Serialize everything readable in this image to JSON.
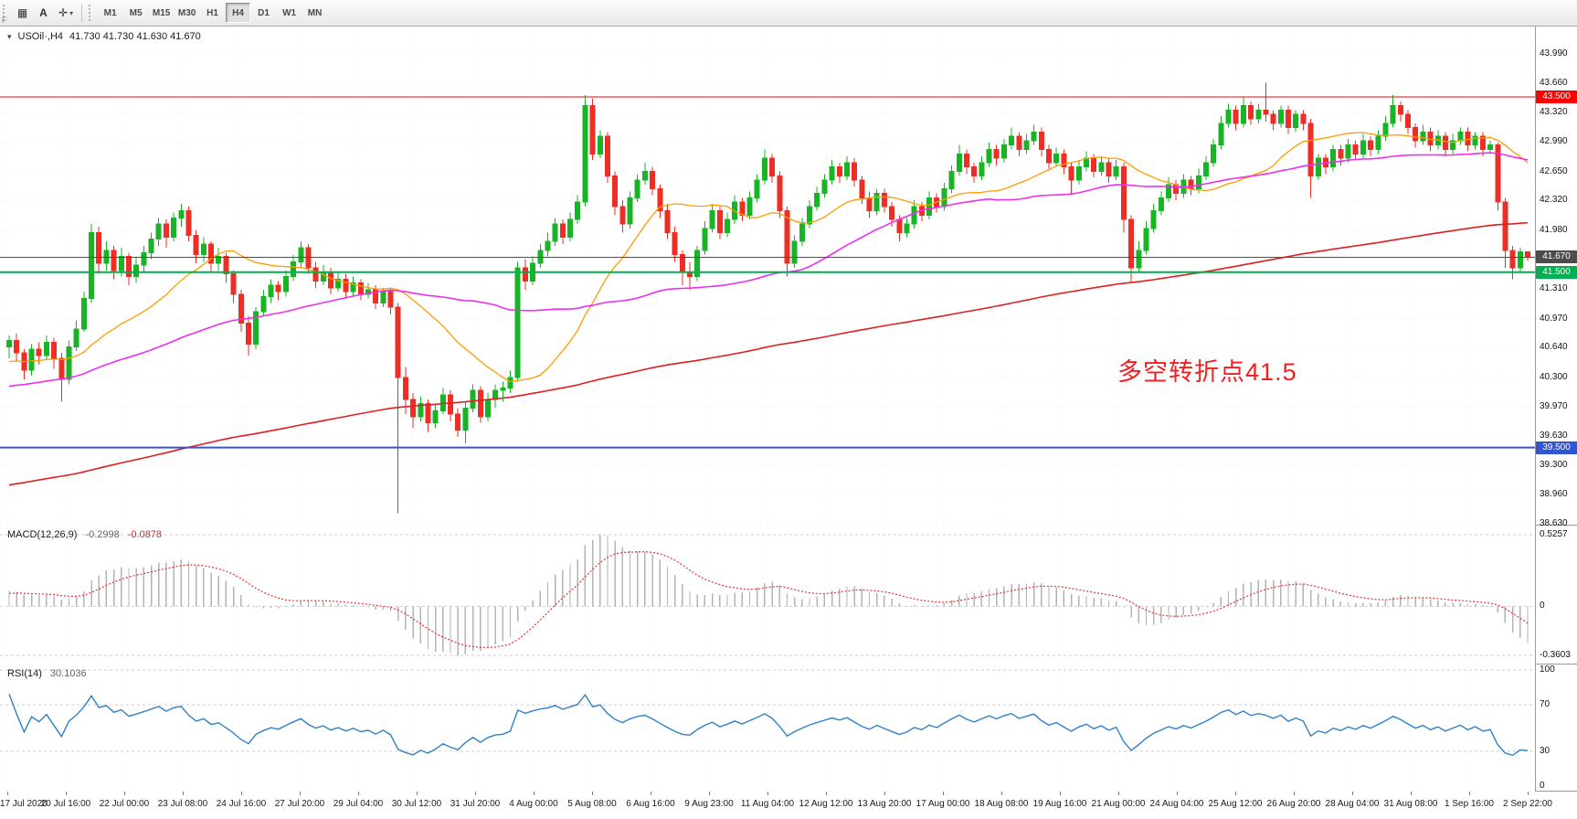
{
  "toolbar": {
    "corner_label": "F",
    "grid_glyph": "▦",
    "text_tool_label": "A",
    "cursor_glyph": "✛",
    "dropdown_glyph": "▾",
    "timeframes": [
      "M1",
      "M5",
      "M15",
      "M30",
      "H1",
      "H4",
      "D1",
      "W1",
      "MN"
    ],
    "active_timeframe": "H4"
  },
  "chart_data": {
    "type": "candlestick",
    "symbol_label": "USOil·,H4",
    "ohlc_text": "41.730 41.730 41.630 41.670",
    "arrow_glyph": "▾",
    "annotation": {
      "text": "多空转折点41.5",
      "color": "#f51d1d",
      "x_frac": 0.728,
      "y_price": 40.42,
      "font_size": 27
    },
    "colors": {
      "up": "#18b426",
      "down": "#ee2e24",
      "grid": "#f0f0f0",
      "macd_hist": "#b3b3b3",
      "macd_signal": "#e03434",
      "rsi_line": "#2f80c8"
    },
    "y_range": [
      38.63,
      43.99
    ],
    "y_axis_ticks": [
      "43.990",
      "43.660",
      "43.320",
      "42.990",
      "42.650",
      "42.320",
      "41.980",
      "41.310",
      "40.970",
      "40.640",
      "40.300",
      "39.970",
      "39.630",
      "39.300",
      "38.960",
      "38.630"
    ],
    "x_labels": [
      "17 Jul 2020",
      "20 Jul 16:00",
      "22 Jul 00:00",
      "23 Jul 08:00",
      "24 Jul 16:00",
      "27 Jul 20:00",
      "29 Jul 04:00",
      "30 Jul 12:00",
      "31 Jul 20:00",
      "4 Aug 00:00",
      "5 Aug 08:00",
      "6 Aug 16:00",
      "9 Aug 23:00",
      "11 Aug 04:00",
      "12 Aug 12:00",
      "13 Aug 20:00",
      "17 Aug 00:00",
      "18 Aug 08:00",
      "19 Aug 16:00",
      "21 Aug 00:00",
      "24 Aug 04:00",
      "25 Aug 12:00",
      "26 Aug 20:00",
      "28 Aug 04:00",
      "31 Aug 08:00",
      "1 Sep 16:00",
      "2 Sep 22:00"
    ],
    "horizontal_lines": [
      {
        "price": 43.5,
        "label": "43.500",
        "color": "#ff0000",
        "width": 1
      },
      {
        "price": 41.67,
        "label": "41.670",
        "color": "#4d4d4d",
        "width": 1
      },
      {
        "price": 41.5,
        "label": "41.500",
        "color": "#00b050",
        "width": 2
      },
      {
        "price": 39.5,
        "label": "39.500",
        "color": "#3355d0",
        "width": 2
      }
    ],
    "moving_averages": [
      {
        "period": 20,
        "color": "#ff9c00",
        "width": 1.3,
        "name": "ma-fast-orange"
      },
      {
        "period": 55,
        "color": "#ee2fee",
        "width": 1.6,
        "name": "ma-mid-magenta"
      },
      {
        "period": 200,
        "color": "#dd2020",
        "width": 1.6,
        "name": "ma-slow-red"
      }
    ],
    "ma_seed": {
      "count": 220,
      "start": 37.2,
      "end": 40.6
    },
    "macd": {
      "label": "MACD(12,26,9)",
      "main_value": "-0.2998",
      "signal_value": "-0.0878",
      "fast": 12,
      "slow": 26,
      "signal": 9,
      "max": 0.5257,
      "min": -0.3603,
      "axis_ticks": [
        {
          "v": 0.5257,
          "label": "0.5257"
        },
        {
          "v": 0,
          "label": "0"
        },
        {
          "v": -0.3603,
          "label": "-0.3603"
        }
      ]
    },
    "rsi": {
      "label": "RSI(14)",
      "value": "30.1036",
      "period": 14,
      "levels": [
        100,
        70,
        30
      ],
      "axis_ticks": [
        {
          "v": 100,
          "label": "100"
        },
        {
          "v": 70,
          "label": "70"
        },
        {
          "v": 30,
          "label": "30"
        },
        {
          "v": 0,
          "label": "0"
        }
      ]
    },
    "candles": [
      [
        40.65,
        40.78,
        40.52,
        40.72
      ],
      [
        40.72,
        40.8,
        40.48,
        40.58
      ],
      [
        40.58,
        40.62,
        40.28,
        40.38
      ],
      [
        40.38,
        40.68,
        40.32,
        40.62
      ],
      [
        40.62,
        40.7,
        40.45,
        40.55
      ],
      [
        40.55,
        40.78,
        40.5,
        40.7
      ],
      [
        40.7,
        40.75,
        40.4,
        40.52
      ],
      [
        40.52,
        40.58,
        40.02,
        40.28
      ],
      [
        40.28,
        40.72,
        40.22,
        40.65
      ],
      [
        40.65,
        40.95,
        40.6,
        40.85
      ],
      [
        40.85,
        41.28,
        40.82,
        41.2
      ],
      [
        41.2,
        42.05,
        41.15,
        41.95
      ],
      [
        41.95,
        42.02,
        41.48,
        41.6
      ],
      [
        41.6,
        41.85,
        41.52,
        41.75
      ],
      [
        41.75,
        41.8,
        41.42,
        41.52
      ],
      [
        41.52,
        41.78,
        41.45,
        41.68
      ],
      [
        41.68,
        41.72,
        41.35,
        41.45
      ],
      [
        41.45,
        41.68,
        41.38,
        41.58
      ],
      [
        41.58,
        41.8,
        41.5,
        41.72
      ],
      [
        41.72,
        41.95,
        41.65,
        41.88
      ],
      [
        41.88,
        42.12,
        41.8,
        42.05
      ],
      [
        42.05,
        42.1,
        41.78,
        41.9
      ],
      [
        41.9,
        42.18,
        41.85,
        42.12
      ],
      [
        42.12,
        42.28,
        42.02,
        42.2
      ],
      [
        42.2,
        42.25,
        41.85,
        41.92
      ],
      [
        41.92,
        41.98,
        41.6,
        41.7
      ],
      [
        41.7,
        41.9,
        41.62,
        41.82
      ],
      [
        41.82,
        41.85,
        41.5,
        41.6
      ],
      [
        41.6,
        41.78,
        41.52,
        41.68
      ],
      [
        41.68,
        41.72,
        41.38,
        41.48
      ],
      [
        41.48,
        41.52,
        41.15,
        41.25
      ],
      [
        41.25,
        41.3,
        40.82,
        40.92
      ],
      [
        40.92,
        41.0,
        40.55,
        40.68
      ],
      [
        40.68,
        41.1,
        40.62,
        41.05
      ],
      [
        41.05,
        41.3,
        41.0,
        41.22
      ],
      [
        41.22,
        41.42,
        41.15,
        41.35
      ],
      [
        41.35,
        41.4,
        41.18,
        41.28
      ],
      [
        41.28,
        41.52,
        41.22,
        41.45
      ],
      [
        41.45,
        41.7,
        41.4,
        41.62
      ],
      [
        41.62,
        41.85,
        41.55,
        41.78
      ],
      [
        41.78,
        41.82,
        41.48,
        41.55
      ],
      [
        41.55,
        41.62,
        41.32,
        41.4
      ],
      [
        41.4,
        41.58,
        41.35,
        41.5
      ],
      [
        41.5,
        41.55,
        41.25,
        41.32
      ],
      [
        41.32,
        41.5,
        41.28,
        41.42
      ],
      [
        41.42,
        41.48,
        41.2,
        41.28
      ],
      [
        41.28,
        41.45,
        41.22,
        41.38
      ],
      [
        41.38,
        41.42,
        41.18,
        41.25
      ],
      [
        41.25,
        41.38,
        41.2,
        41.3
      ],
      [
        41.3,
        41.35,
        41.08,
        41.15
      ],
      [
        41.15,
        41.32,
        41.1,
        41.28
      ],
      [
        41.28,
        41.32,
        41.02,
        41.1
      ],
      [
        41.1,
        41.15,
        38.75,
        40.3
      ],
      [
        40.3,
        40.42,
        39.88,
        40.05
      ],
      [
        40.05,
        40.12,
        39.72,
        39.85
      ],
      [
        39.85,
        40.08,
        39.8,
        40.0
      ],
      [
        40.0,
        40.05,
        39.68,
        39.78
      ],
      [
        39.78,
        40.0,
        39.72,
        39.92
      ],
      [
        39.92,
        40.18,
        39.88,
        40.1
      ],
      [
        40.1,
        40.15,
        39.8,
        39.88
      ],
      [
        39.88,
        39.95,
        39.62,
        39.7
      ],
      [
        39.7,
        40.02,
        39.55,
        39.95
      ],
      [
        39.95,
        40.22,
        39.9,
        40.15
      ],
      [
        40.15,
        40.2,
        39.78,
        39.85
      ],
      [
        39.85,
        40.12,
        39.8,
        40.05
      ],
      [
        40.05,
        40.22,
        39.95,
        40.15
      ],
      [
        40.15,
        40.25,
        40.02,
        40.18
      ],
      [
        40.18,
        40.38,
        40.12,
        40.3
      ],
      [
        40.3,
        41.62,
        40.25,
        41.55
      ],
      [
        41.55,
        41.65,
        41.3,
        41.4
      ],
      [
        41.4,
        41.68,
        41.35,
        41.6
      ],
      [
        41.6,
        41.82,
        41.55,
        41.75
      ],
      [
        41.75,
        41.95,
        41.68,
        41.85
      ],
      [
        41.85,
        42.12,
        41.8,
        42.05
      ],
      [
        42.05,
        42.1,
        41.82,
        41.9
      ],
      [
        41.9,
        42.18,
        41.85,
        42.1
      ],
      [
        42.1,
        42.38,
        42.05,
        42.3
      ],
      [
        42.3,
        43.52,
        42.25,
        43.4
      ],
      [
        43.4,
        43.48,
        42.78,
        42.85
      ],
      [
        42.85,
        43.12,
        42.8,
        43.05
      ],
      [
        43.05,
        43.1,
        42.52,
        42.6
      ],
      [
        42.6,
        42.65,
        42.15,
        42.25
      ],
      [
        42.25,
        42.32,
        41.95,
        42.05
      ],
      [
        42.05,
        42.42,
        42.0,
        42.35
      ],
      [
        42.35,
        42.62,
        42.3,
        42.55
      ],
      [
        42.55,
        42.75,
        42.5,
        42.65
      ],
      [
        42.65,
        42.7,
        42.38,
        42.45
      ],
      [
        42.45,
        42.5,
        42.12,
        42.2
      ],
      [
        42.2,
        42.28,
        41.88,
        41.95
      ],
      [
        41.95,
        42.02,
        41.62,
        41.7
      ],
      [
        41.7,
        41.75,
        41.35,
        41.5
      ],
      [
        41.5,
        41.62,
        41.3,
        41.45
      ],
      [
        41.45,
        41.8,
        41.4,
        41.75
      ],
      [
        41.75,
        42.08,
        41.7,
        42.0
      ],
      [
        42.0,
        42.28,
        41.95,
        42.2
      ],
      [
        42.2,
        42.25,
        41.88,
        41.95
      ],
      [
        41.95,
        42.18,
        41.9,
        42.1
      ],
      [
        42.1,
        42.38,
        42.05,
        42.3
      ],
      [
        42.3,
        42.35,
        42.08,
        42.15
      ],
      [
        42.15,
        42.42,
        42.1,
        42.35
      ],
      [
        42.35,
        42.62,
        42.3,
        42.55
      ],
      [
        42.55,
        42.9,
        42.5,
        42.8
      ],
      [
        42.8,
        42.85,
        42.52,
        42.6
      ],
      [
        42.6,
        42.65,
        42.12,
        42.2
      ],
      [
        42.2,
        42.25,
        41.45,
        41.6
      ],
      [
        41.6,
        41.92,
        41.55,
        41.85
      ],
      [
        41.85,
        42.12,
        41.8,
        42.05
      ],
      [
        42.05,
        42.32,
        42.0,
        42.25
      ],
      [
        42.25,
        42.48,
        42.2,
        42.4
      ],
      [
        42.4,
        42.62,
        42.35,
        42.55
      ],
      [
        42.55,
        42.78,
        42.5,
        42.7
      ],
      [
        42.7,
        42.75,
        42.52,
        42.6
      ],
      [
        42.6,
        42.82,
        42.55,
        42.75
      ],
      [
        42.75,
        42.8,
        42.48,
        42.55
      ],
      [
        42.55,
        42.6,
        42.28,
        42.35
      ],
      [
        42.35,
        42.42,
        42.12,
        42.2
      ],
      [
        42.2,
        42.45,
        42.15,
        42.4
      ],
      [
        42.4,
        42.45,
        42.18,
        42.25
      ],
      [
        42.25,
        42.3,
        42.02,
        42.1
      ],
      [
        42.1,
        42.15,
        41.85,
        41.95
      ],
      [
        41.95,
        42.12,
        41.9,
        42.05
      ],
      [
        42.05,
        42.32,
        42.0,
        42.25
      ],
      [
        42.25,
        42.3,
        42.08,
        42.15
      ],
      [
        42.15,
        42.42,
        42.1,
        42.35
      ],
      [
        42.35,
        42.4,
        42.18,
        42.25
      ],
      [
        42.25,
        42.52,
        42.2,
        42.45
      ],
      [
        42.45,
        42.72,
        42.4,
        42.65
      ],
      [
        42.65,
        42.95,
        42.6,
        42.85
      ],
      [
        42.85,
        42.9,
        42.62,
        42.7
      ],
      [
        42.7,
        42.75,
        42.52,
        42.6
      ],
      [
        42.6,
        42.82,
        42.55,
        42.75
      ],
      [
        42.75,
        42.98,
        42.7,
        42.9
      ],
      [
        42.9,
        42.95,
        42.72,
        42.8
      ],
      [
        42.8,
        43.02,
        42.75,
        42.95
      ],
      [
        42.95,
        43.15,
        42.9,
        43.05
      ],
      [
        43.05,
        43.1,
        42.82,
        42.9
      ],
      [
        42.9,
        43.08,
        42.85,
        43.0
      ],
      [
        43.0,
        43.18,
        42.95,
        43.1
      ],
      [
        43.1,
        43.15,
        42.82,
        42.9
      ],
      [
        42.9,
        42.95,
        42.68,
        42.75
      ],
      [
        42.75,
        42.92,
        42.7,
        42.85
      ],
      [
        42.85,
        42.9,
        42.62,
        42.7
      ],
      [
        42.7,
        42.75,
        42.4,
        42.55
      ],
      [
        42.55,
        42.78,
        42.5,
        42.7
      ],
      [
        42.7,
        42.88,
        42.65,
        42.8
      ],
      [
        42.8,
        42.85,
        42.58,
        42.65
      ],
      [
        42.65,
        42.82,
        42.6,
        42.75
      ],
      [
        42.75,
        42.8,
        42.52,
        42.6
      ],
      [
        42.6,
        42.78,
        42.55,
        42.7
      ],
      [
        42.7,
        42.75,
        41.95,
        42.1
      ],
      [
        42.1,
        42.15,
        41.38,
        41.55
      ],
      [
        41.55,
        41.85,
        41.5,
        41.75
      ],
      [
        41.75,
        42.08,
        41.7,
        42.0
      ],
      [
        42.0,
        42.28,
        41.95,
        42.2
      ],
      [
        42.2,
        42.42,
        42.15,
        42.35
      ],
      [
        42.35,
        42.58,
        42.3,
        42.5
      ],
      [
        42.5,
        42.55,
        42.32,
        42.4
      ],
      [
        42.4,
        42.62,
        42.35,
        42.55
      ],
      [
        42.55,
        42.6,
        42.38,
        42.45
      ],
      [
        42.45,
        42.68,
        42.4,
        42.6
      ],
      [
        42.6,
        42.82,
        42.55,
        42.75
      ],
      [
        42.75,
        43.02,
        42.7,
        42.95
      ],
      [
        42.95,
        43.28,
        42.9,
        43.2
      ],
      [
        43.2,
        43.42,
        43.15,
        43.35
      ],
      [
        43.35,
        43.4,
        43.12,
        43.2
      ],
      [
        43.2,
        43.5,
        43.15,
        43.4
      ],
      [
        43.4,
        43.45,
        43.18,
        43.25
      ],
      [
        43.25,
        43.42,
        43.2,
        43.35
      ],
      [
        43.35,
        43.66,
        43.22,
        43.3
      ],
      [
        43.3,
        43.35,
        43.12,
        43.2
      ],
      [
        43.2,
        43.4,
        43.15,
        43.35
      ],
      [
        43.35,
        43.4,
        43.08,
        43.15
      ],
      [
        43.15,
        43.35,
        43.1,
        43.3
      ],
      [
        43.3,
        43.35,
        43.12,
        43.2
      ],
      [
        43.2,
        43.25,
        42.35,
        42.6
      ],
      [
        42.6,
        42.85,
        42.55,
        42.8
      ],
      [
        42.8,
        42.85,
        42.62,
        42.7
      ],
      [
        42.7,
        42.95,
        42.65,
        42.9
      ],
      [
        42.9,
        42.95,
        42.72,
        42.8
      ],
      [
        42.8,
        43.02,
        42.75,
        42.95
      ],
      [
        42.95,
        43.0,
        42.78,
        42.85
      ],
      [
        42.85,
        43.08,
        42.8,
        43.0
      ],
      [
        43.0,
        43.05,
        42.82,
        42.9
      ],
      [
        42.9,
        43.12,
        42.85,
        43.05
      ],
      [
        43.05,
        43.28,
        43.0,
        43.2
      ],
      [
        43.2,
        43.52,
        43.15,
        43.4
      ],
      [
        43.4,
        43.45,
        43.22,
        43.3
      ],
      [
        43.3,
        43.35,
        43.08,
        43.15
      ],
      [
        43.15,
        43.2,
        42.92,
        43.0
      ],
      [
        43.0,
        43.18,
        42.95,
        43.1
      ],
      [
        43.1,
        43.15,
        42.88,
        42.95
      ],
      [
        42.95,
        43.12,
        42.9,
        43.05
      ],
      [
        43.05,
        43.1,
        42.82,
        42.9
      ],
      [
        42.9,
        43.08,
        42.85,
        43.0
      ],
      [
        43.0,
        43.15,
        42.95,
        43.1
      ],
      [
        43.1,
        43.15,
        42.88,
        42.95
      ],
      [
        42.95,
        43.1,
        42.9,
        43.05
      ],
      [
        43.05,
        43.1,
        42.82,
        42.9
      ],
      [
        42.9,
        43.0,
        42.85,
        42.95
      ],
      [
        42.95,
        42.98,
        42.2,
        42.3
      ],
      [
        42.3,
        42.35,
        41.55,
        41.75
      ],
      [
        41.75,
        41.8,
        41.42,
        41.55
      ],
      [
        41.55,
        41.78,
        41.5,
        41.73
      ],
      [
        41.73,
        41.73,
        41.63,
        41.67
      ]
    ]
  }
}
